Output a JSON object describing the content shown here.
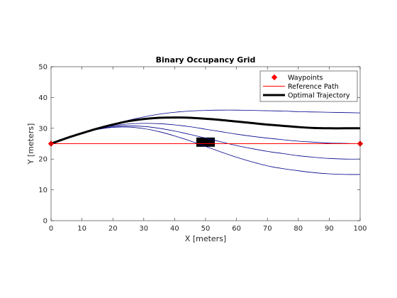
{
  "chart_data": {
    "type": "line",
    "title": "Binary Occupancy Grid",
    "xlabel": "X [meters]",
    "ylabel": "Y [meters]",
    "xlim": [
      0,
      100
    ],
    "ylim": [
      0,
      50
    ],
    "xticks": [
      0,
      10,
      20,
      30,
      40,
      50,
      60,
      70,
      80,
      90,
      100
    ],
    "yticks": [
      0,
      10,
      20,
      30,
      40,
      50
    ],
    "grid": false,
    "legend_position": "top-right",
    "legend": [
      {
        "label": "Waypoints",
        "marker": "red-diamond-icon"
      },
      {
        "label": "Reference Path",
        "line": "thin-red"
      },
      {
        "label": "Optimal Trajectory",
        "line": "thick-black"
      }
    ],
    "waypoints": {
      "x": [
        0,
        100
      ],
      "y": [
        25,
        25
      ],
      "color": "#ff0000"
    },
    "reference_path": {
      "x": [
        0,
        100
      ],
      "y": [
        25,
        25
      ],
      "color": "#ff0000"
    },
    "optimal_trajectory": {
      "color": "#000000",
      "x": [
        0,
        5,
        10,
        15,
        20,
        25,
        30,
        35,
        40,
        45,
        50,
        55,
        60,
        65,
        70,
        75,
        80,
        85,
        90,
        95,
        100
      ],
      "y": [
        25,
        26.8,
        28.4,
        29.9,
        31.2,
        32.3,
        33.0,
        33.4,
        33.5,
        33.4,
        33.1,
        32.7,
        32.2,
        31.7,
        31.2,
        30.8,
        30.4,
        30.1,
        30.0,
        30.0,
        30.0
      ]
    },
    "candidate_trajectories": {
      "color": "#00008b",
      "series": [
        {
          "x": [
            0,
            5,
            10,
            15,
            20,
            25,
            30,
            35,
            40,
            45,
            50,
            55,
            60,
            65,
            70,
            75,
            80,
            85,
            90,
            95,
            100
          ],
          "y": [
            25,
            26.8,
            28.4,
            29.9,
            31.3,
            32.6,
            33.7,
            34.6,
            35.2,
            35.6,
            35.8,
            35.9,
            35.9,
            35.8,
            35.7,
            35.6,
            35.4,
            35.3,
            35.2,
            35.1,
            35.0
          ]
        },
        {
          "x": [
            0,
            5,
            10,
            15,
            20,
            25,
            30,
            35,
            40,
            45,
            50,
            55,
            60,
            65,
            70,
            75,
            80,
            85,
            90,
            95,
            100
          ],
          "y": [
            25,
            26.8,
            28.4,
            29.8,
            30.8,
            31.4,
            31.6,
            31.5,
            31.1,
            30.5,
            29.7,
            28.9,
            28.1,
            27.4,
            26.8,
            26.3,
            25.8,
            25.5,
            25.2,
            25.1,
            25.0
          ]
        },
        {
          "x": [
            0,
            5,
            10,
            15,
            20,
            25,
            30,
            35,
            40,
            45,
            50,
            55,
            60,
            65,
            70,
            75,
            80,
            85,
            90,
            95,
            100
          ],
          "y": [
            25,
            26.8,
            28.4,
            29.7,
            30.5,
            30.8,
            30.6,
            30.0,
            29.1,
            28.0,
            26.8,
            25.6,
            24.4,
            23.4,
            22.5,
            21.8,
            21.1,
            20.6,
            20.2,
            20.0,
            20.0
          ]
        },
        {
          "x": [
            0,
            5,
            10,
            15,
            20,
            25,
            30,
            35,
            40,
            45,
            50,
            55,
            60,
            65,
            70,
            75,
            80,
            85,
            90,
            95,
            100
          ],
          "y": [
            25,
            26.8,
            28.4,
            29.6,
            30.3,
            30.4,
            29.9,
            28.9,
            27.5,
            25.9,
            24.1,
            22.3,
            20.6,
            19.1,
            17.8,
            16.9,
            16.2,
            15.6,
            15.2,
            15.0,
            15.0
          ]
        }
      ]
    },
    "obstacle": {
      "x": [
        47,
        53
      ],
      "y": [
        24,
        27
      ],
      "color": "#000000"
    }
  }
}
